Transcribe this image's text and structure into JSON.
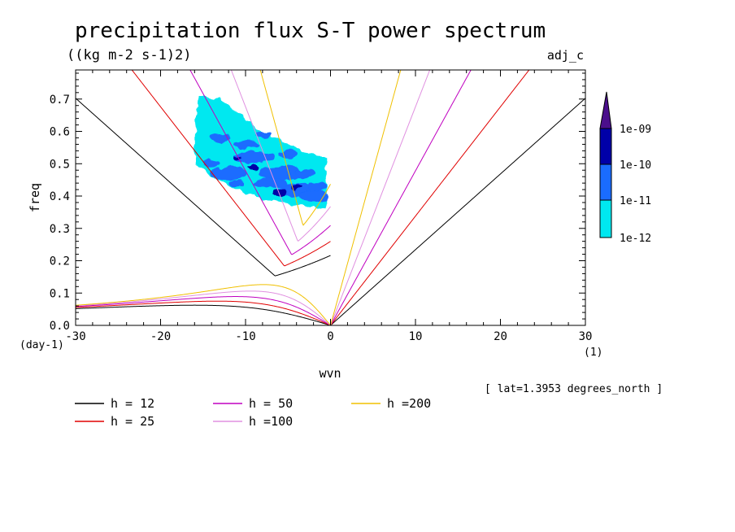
{
  "chart_data": {
    "type": "contour",
    "title": "precipitation flux S-T power spectrum",
    "units": "((kg m-2 s-1)2)",
    "variable_label": "adj_c",
    "xlabel": "wvn",
    "ylabel": "freq",
    "x_units": "(1)",
    "y_units": "(day-1)",
    "xlim": [
      -30,
      30
    ],
    "ylim": [
      0,
      0.79
    ],
    "x_ticks": [
      "-30",
      "-20",
      "-10",
      "0",
      "10",
      "20",
      "30"
    ],
    "y_ticks": [
      "0.0",
      "0.1",
      "0.2",
      "0.3",
      "0.4",
      "0.5",
      "0.6",
      "0.7"
    ],
    "annotation": "[ lat=1.3953 degrees_north ]",
    "colorbar": {
      "labels": [
        "1e-09",
        "1e-10",
        "1e-11",
        "1e-12"
      ],
      "colors": [
        "#4b0f8c",
        "#0000a8",
        "#1a6cff",
        "#00e8f0"
      ]
    },
    "contour_fill": {
      "x_range": [
        -16,
        -0.5
      ],
      "y_range": [
        0.36,
        0.71
      ],
      "note_levels": [
        "1e-12",
        "1e-11",
        "1e-10"
      ]
    },
    "series": [
      {
        "name": "h = 12",
        "h": 12,
        "color": "#000000"
      },
      {
        "name": "h = 25",
        "h": 25,
        "color": "#e00000"
      },
      {
        "name": "h = 50",
        "h": 50,
        "color": "#c000c0"
      },
      {
        "name": "h =100",
        "h": 100,
        "color": "#e090e0"
      },
      {
        "name": "h =200",
        "h": 200,
        "color": "#f0c000"
      }
    ]
  }
}
